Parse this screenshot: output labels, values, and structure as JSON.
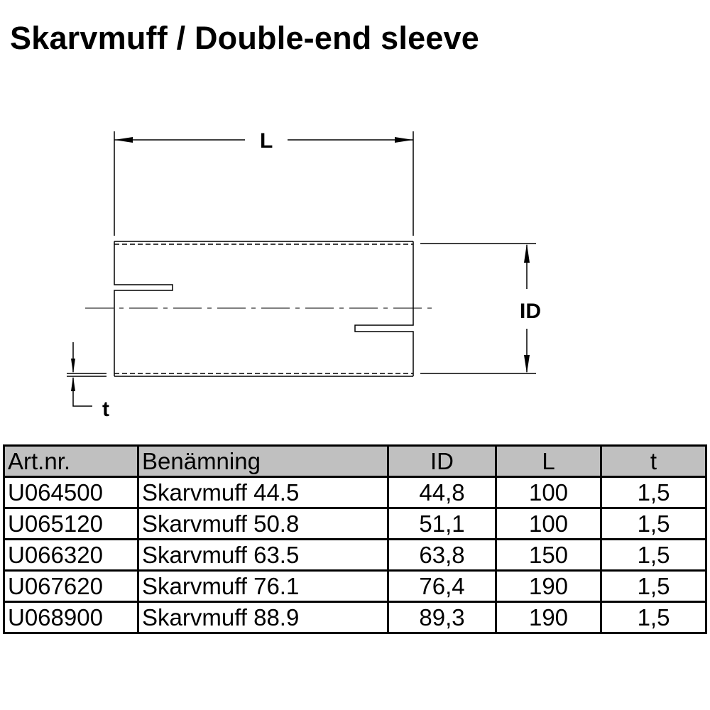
{
  "title": "Skarvmuff / Double-end sleeve",
  "drawing": {
    "labels": {
      "length": "L",
      "inner_diameter": "ID",
      "thickness": "t"
    }
  },
  "table": {
    "headers": [
      "Art.nr.",
      "Benämning",
      "ID",
      "L",
      "t"
    ],
    "rows": [
      [
        "U064500",
        "Skarvmuff 44.5",
        "44,8",
        "100",
        "1,5"
      ],
      [
        "U065120",
        "Skarvmuff 50.8",
        "51,1",
        "100",
        "1,5"
      ],
      [
        "U066320",
        "Skarvmuff 63.5",
        "63,8",
        "150",
        "1,5"
      ],
      [
        "U067620",
        "Skarvmuff 76.1",
        "76,4",
        "190",
        "1,5"
      ],
      [
        "U068900",
        "Skarvmuff 88.9",
        "89,3",
        "190",
        "1,5"
      ]
    ]
  }
}
